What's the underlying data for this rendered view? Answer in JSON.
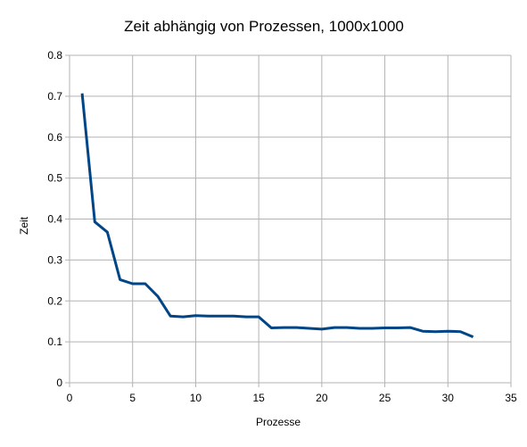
{
  "chart_data": {
    "type": "line",
    "title": "Zeit abhängig von Prozessen, 1000x1000",
    "xlabel": "Prozesse",
    "ylabel": "Zeit",
    "xlim": [
      0,
      35
    ],
    "ylim": [
      0,
      0.8
    ],
    "x_ticks": [
      "0",
      "5",
      "10",
      "15",
      "20",
      "25",
      "30",
      "35"
    ],
    "y_ticks": [
      "0",
      "0.1",
      "0.2",
      "0.3",
      "0.4",
      "0.5",
      "0.6",
      "0.7",
      "0.8"
    ],
    "grid": true,
    "legend": "none",
    "series": [
      {
        "color": "#004586",
        "x": [
          1,
          2,
          3,
          4,
          5,
          6,
          7,
          8,
          9,
          10,
          11,
          12,
          13,
          14,
          15,
          16,
          17,
          18,
          19,
          20,
          21,
          22,
          23,
          24,
          25,
          26,
          27,
          28,
          29,
          30,
          31,
          32
        ],
        "values": [
          0.707,
          0.393,
          0.368,
          0.252,
          0.242,
          0.242,
          0.211,
          0.163,
          0.161,
          0.164,
          0.163,
          0.163,
          0.163,
          0.161,
          0.161,
          0.134,
          0.135,
          0.135,
          0.133,
          0.131,
          0.135,
          0.135,
          0.133,
          0.133,
          0.134,
          0.134,
          0.135,
          0.126,
          0.125,
          0.126,
          0.125,
          0.112
        ]
      }
    ]
  },
  "colors": {
    "line": "#004586",
    "grid": "#b3b3b3",
    "axis": "#b3b3b3"
  }
}
